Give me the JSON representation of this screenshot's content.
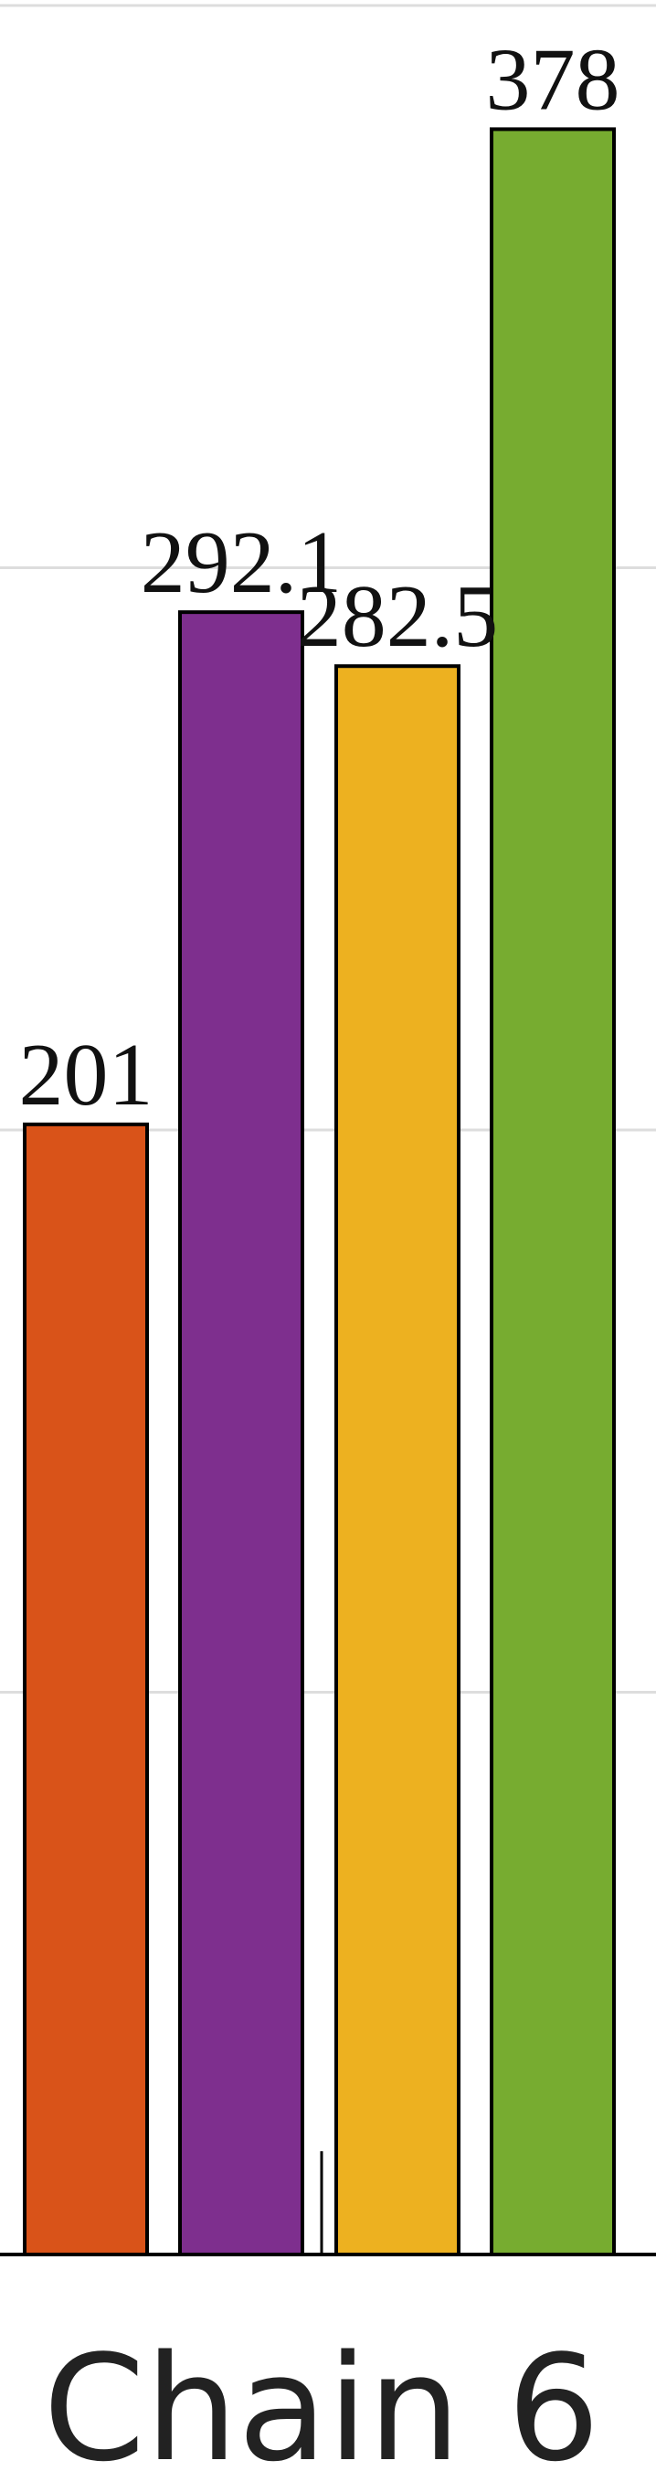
{
  "chart_data": {
    "type": "bar",
    "categories": [
      "Chain 6"
    ],
    "series": [
      {
        "values": [
          201
        ],
        "color": "#D95319"
      },
      {
        "values": [
          292.1
        ],
        "color": "#7E2F8E"
      },
      {
        "values": [
          282.5
        ],
        "color": "#EDB120"
      },
      {
        "values": [
          378
        ],
        "color": "#77AC30"
      }
    ],
    "data_labels": [
      "201",
      "292.1",
      "282.5",
      "378"
    ],
    "ylim": [
      0,
      400
    ],
    "y_gridlines": [
      100,
      200,
      300,
      400
    ],
    "grid": true,
    "colors": {
      "grid": "#dddddd",
      "axis": "#000000",
      "bar_edge": "#000000"
    }
  }
}
